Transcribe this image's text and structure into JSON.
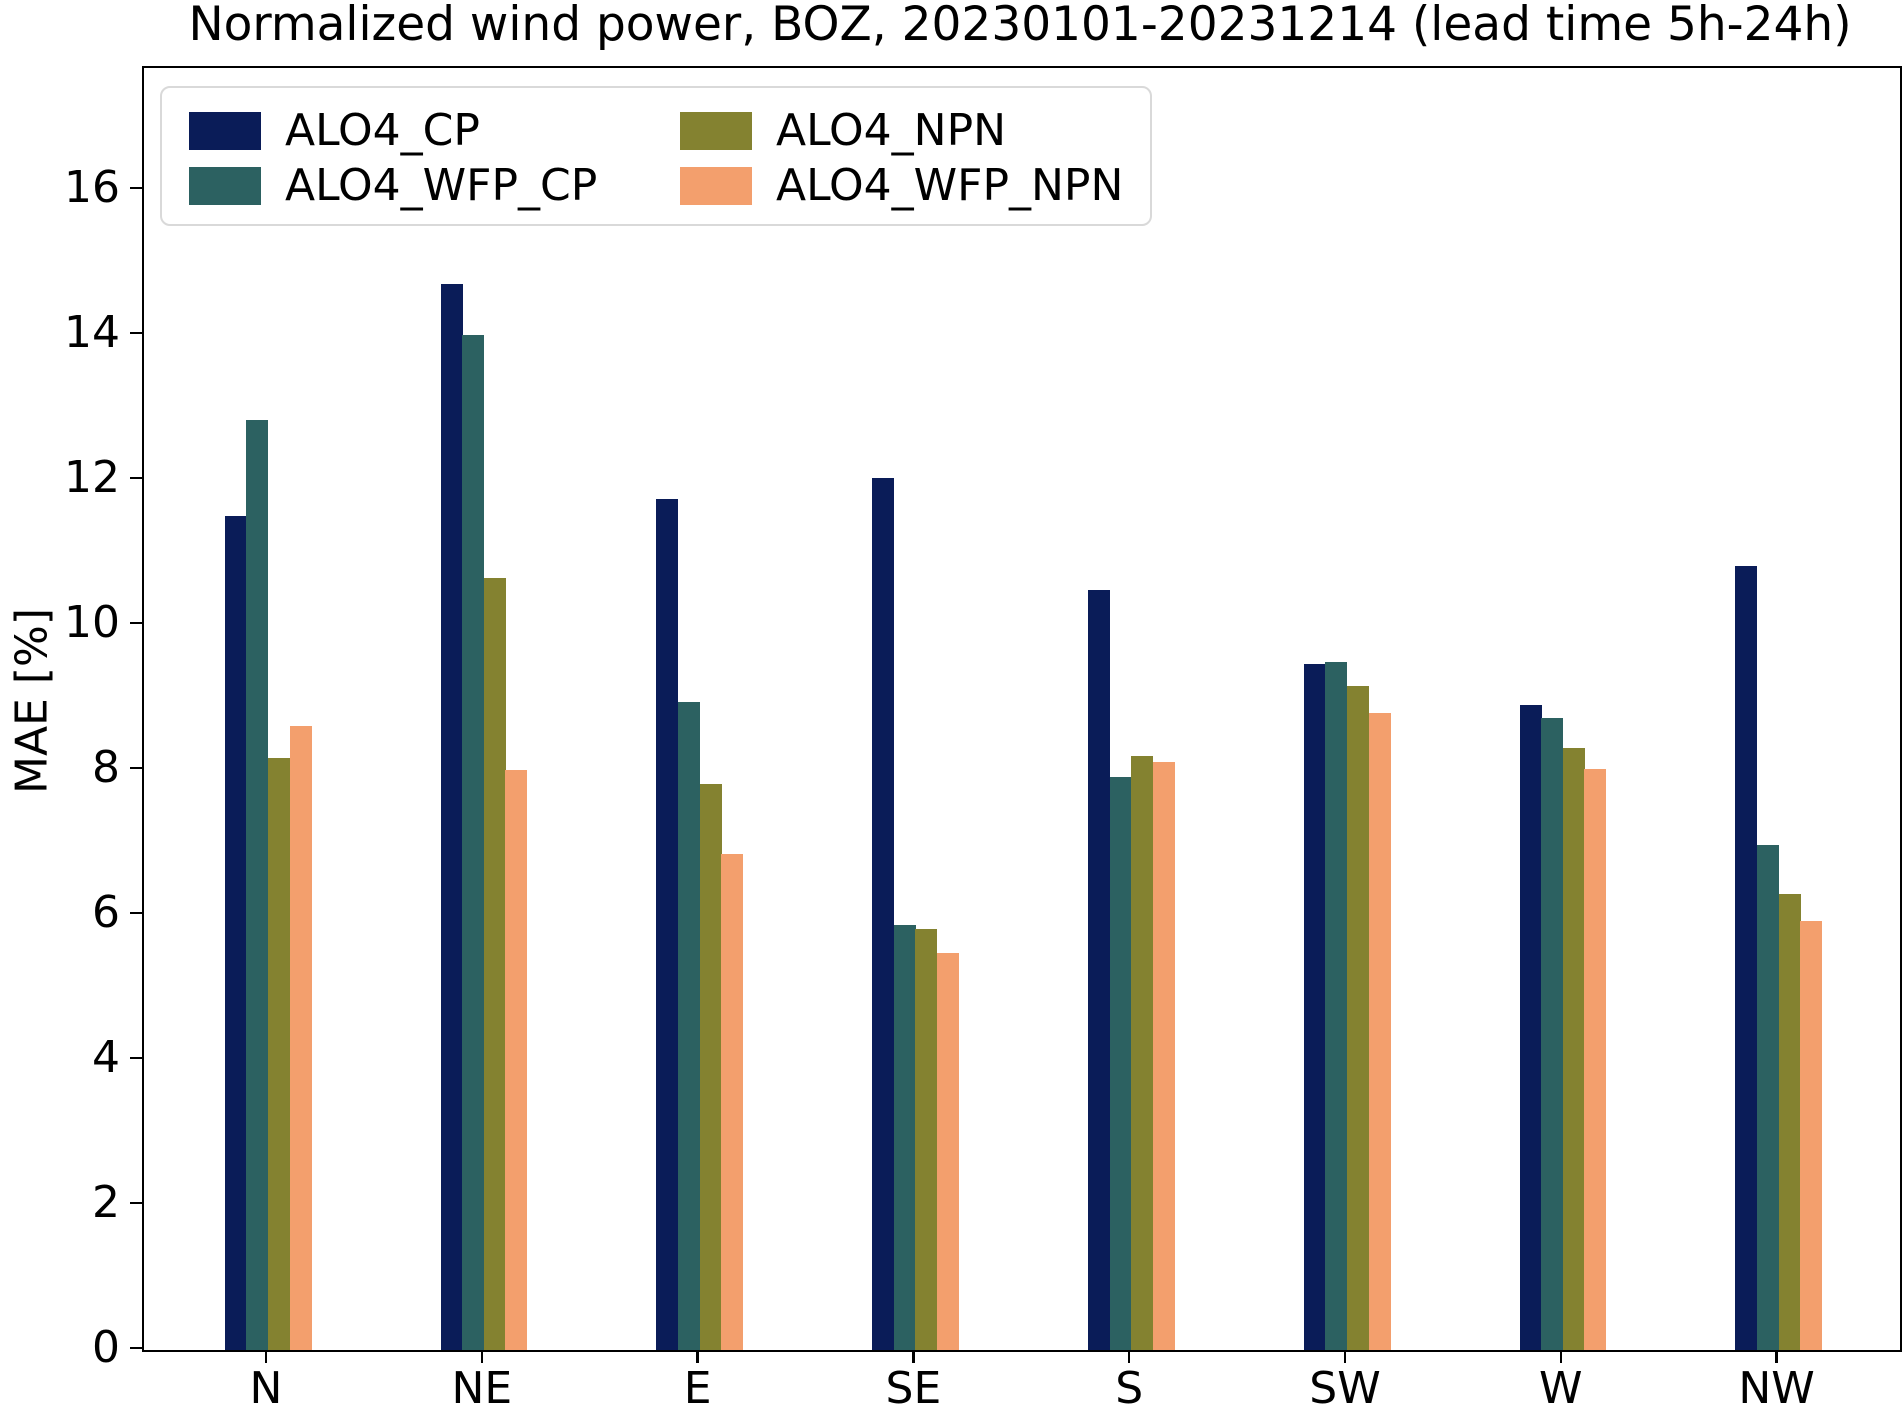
{
  "chart_data": {
    "type": "bar",
    "title": "Normalized wind power, BOZ, 20230101-20231214 (lead time 5h-24h)",
    "ylabel": "MAE [%]",
    "xlabel": "",
    "categories": [
      "N",
      "NE",
      "E",
      "SE",
      "S",
      "SW",
      "W",
      "NW"
    ],
    "series": [
      {
        "name": "ALO4_CP",
        "color": "#0a1c58",
        "values": [
          11.5,
          14.7,
          11.73,
          12.03,
          10.48,
          9.46,
          8.89,
          10.81
        ]
      },
      {
        "name": "ALO4_WFP_CP",
        "color": "#2c6161",
        "values": [
          12.83,
          14.0,
          8.93,
          5.86,
          7.9,
          9.49,
          8.71,
          6.97
        ]
      },
      {
        "name": "ALO4_NPN",
        "color": "#848230",
        "values": [
          8.17,
          10.64,
          7.8,
          5.81,
          8.19,
          9.16,
          8.3,
          6.29
        ]
      },
      {
        "name": "ALO4_WFP_NPN",
        "color": "#f39f6d",
        "values": [
          8.61,
          8.0,
          6.84,
          5.48,
          8.11,
          8.78,
          8.01,
          5.91
        ]
      }
    ],
    "ylim": [
      0,
      17.68
    ],
    "yticks": [
      0,
      2,
      4,
      6,
      8,
      10,
      12,
      14,
      16
    ],
    "grid": false,
    "legend_position": "upper left",
    "legend_columns": 2
  }
}
